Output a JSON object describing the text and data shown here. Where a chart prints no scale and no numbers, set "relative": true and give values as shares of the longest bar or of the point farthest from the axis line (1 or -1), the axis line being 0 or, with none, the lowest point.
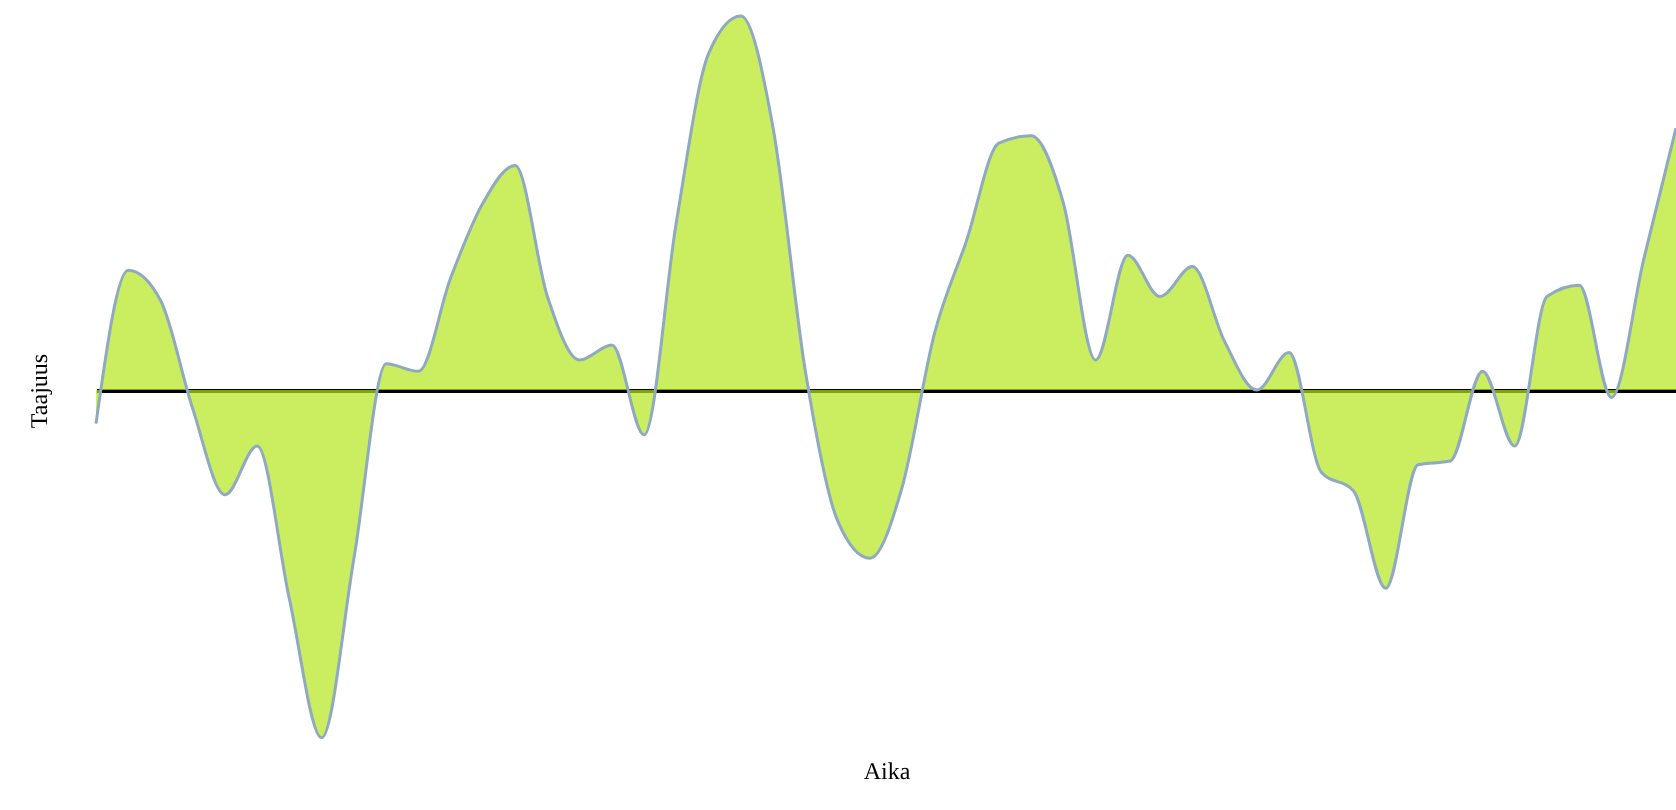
{
  "chart_data": {
    "type": "area",
    "relative": true,
    "xlabel": "Aika",
    "ylabel": "Taajuus",
    "tick_labels": false,
    "grid": false,
    "categories": [
      null,
      null,
      null,
      null,
      null,
      null,
      null,
      null,
      null,
      null,
      null,
      null,
      null,
      null,
      null,
      null,
      null,
      null,
      null,
      null,
      null,
      null,
      null,
      null,
      null,
      null,
      null,
      null,
      null,
      null,
      null,
      null,
      null,
      null,
      null,
      null,
      null,
      null,
      null,
      null,
      null,
      null,
      null,
      null,
      null,
      null,
      null,
      null,
      null,
      null
    ],
    "series": [
      {
        "color": "#b5e61d",
        "values": [
          -0.09,
          0.32,
          0.24,
          -0.05,
          -0.28,
          -0.15,
          -0.56,
          -0.93,
          -0.45,
          0.07,
          0.05,
          0.3,
          0.5,
          0.6,
          0.25,
          0.08,
          0.12,
          -0.12,
          0.45,
          0.9,
          1.0,
          0.7,
          0.05,
          -0.35,
          -0.45,
          -0.26,
          0.15,
          0.4,
          0.66,
          0.68,
          0.5,
          0.08,
          0.36,
          0.25,
          0.33,
          0.13,
          0.0,
          0.1,
          -0.22,
          -0.27,
          -0.53,
          -0.2,
          -0.19,
          0.05,
          -0.15,
          0.25,
          0.28,
          -0.02,
          0.35,
          0.7
        ]
      }
    ]
  }
}
